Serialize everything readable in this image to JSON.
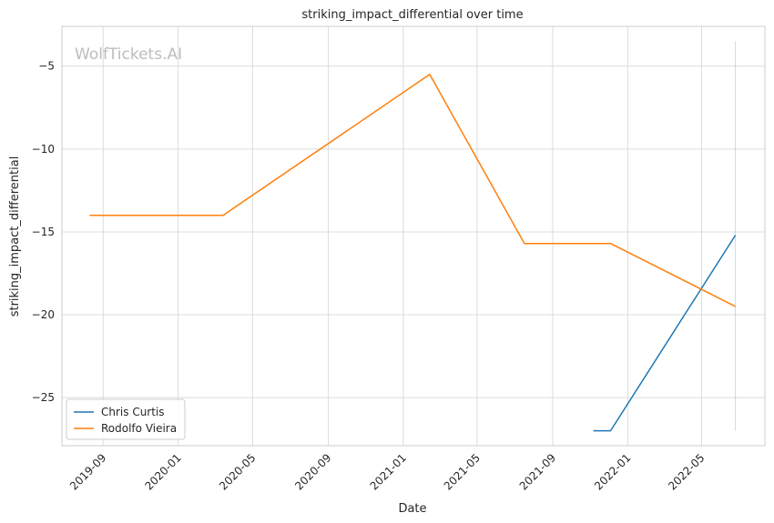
{
  "chart_data": {
    "type": "line",
    "title": "striking_impact_differential over time",
    "xlabel": "Date",
    "ylabel": "striking_impact_differential",
    "watermark": "WolfTickets.AI",
    "x_ticks": [
      "2019-09",
      "2020-01",
      "2020-05",
      "2020-09",
      "2021-01",
      "2021-05",
      "2021-09",
      "2022-01",
      "2022-05"
    ],
    "y_ticks": [
      -25,
      -20,
      -15,
      -10,
      -5
    ],
    "xlim": [
      "2019-06-26",
      "2022-08-12"
    ],
    "ylim": [
      -27.9,
      -2.6
    ],
    "grid": true,
    "legend_position": "lower-left",
    "series": [
      {
        "name": "Chris Curtis",
        "color": "#1f77b4",
        "points": [
          {
            "x": "2021-11-06",
            "y": -27.0
          },
          {
            "x": "2021-12-04",
            "y": -27.0
          },
          {
            "x": "2022-06-25",
            "y": -15.2
          }
        ],
        "band": {
          "x": "2022-06-25",
          "low": -27.0,
          "high": -3.5
        }
      },
      {
        "name": "Rodolfo Vieira",
        "color": "#ff7f0e",
        "points": [
          {
            "x": "2019-08-10",
            "y": -14.0
          },
          {
            "x": "2020-03-14",
            "y": -14.0
          },
          {
            "x": "2021-02-13",
            "y": -5.5
          },
          {
            "x": "2021-07-17",
            "y": -15.7
          },
          {
            "x": "2021-12-04",
            "y": -15.7
          },
          {
            "x": "2022-06-25",
            "y": -19.5
          }
        ]
      }
    ]
  }
}
